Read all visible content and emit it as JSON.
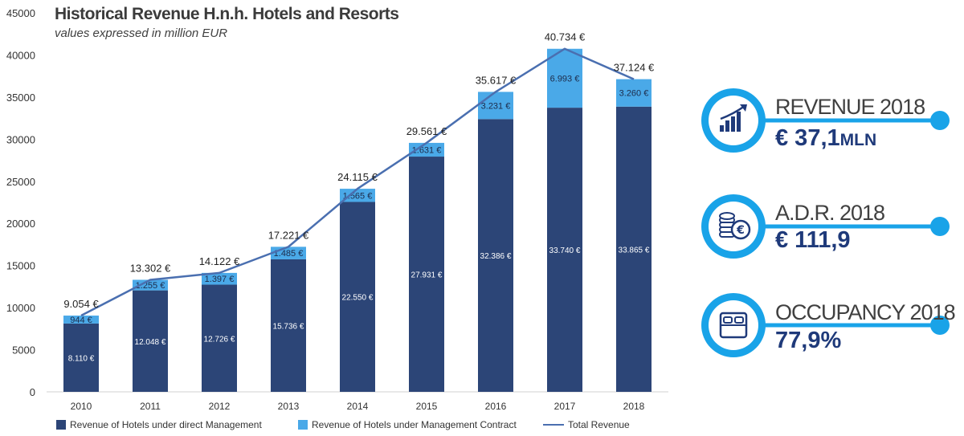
{
  "title": "Historical Revenue H.n.h. Hotels and Resorts",
  "subtitle": "values expressed in million EUR",
  "colors": {
    "direct": "#2c4577",
    "contract": "#4aa9e8",
    "total_line": "#4a6fb0",
    "kpi_ring": "#19a3e8",
    "kpi_value": "#1f3a7a"
  },
  "chart_data": {
    "type": "bar",
    "stacked": true,
    "categories": [
      "2010",
      "2011",
      "2012",
      "2013",
      "2014",
      "2015",
      "2016",
      "2017",
      "2018"
    ],
    "series": [
      {
        "name": "Revenue of Hotels under direct Management",
        "values": [
          8110,
          12048,
          12726,
          15736,
          22550,
          27931,
          32386,
          33740,
          33865
        ],
        "labels": [
          "8.110 €",
          "12.048 €",
          "12.726 €",
          "15.736 €",
          "22.550 €",
          "27.931 €",
          "32.386 €",
          "33.740 €",
          "33.865 €"
        ]
      },
      {
        "name": "Revenue of Hotels under Management Contract",
        "values": [
          944,
          1255,
          1397,
          1485,
          1565,
          1631,
          3231,
          6993,
          3260
        ],
        "labels": [
          "944 €",
          "1.255 €",
          "1.397 €",
          "1.485 €",
          "1.565 €",
          "1.631 €",
          "3.231 €",
          "6.993 €",
          "3.260 €"
        ]
      },
      {
        "name": "Total Revenue",
        "type": "line",
        "values": [
          9054,
          13302,
          14122,
          17221,
          24115,
          29561,
          35617,
          40734,
          37124
        ],
        "labels": [
          "9.054 €",
          "13.302 €",
          "14.122 €",
          "17.221 €",
          "24.115 €",
          "29.561 €",
          "35.617 €",
          "40.734 €",
          "37.124 €"
        ]
      }
    ],
    "ylim": [
      0,
      45000
    ],
    "yticks": [
      "0",
      "5000",
      "10000",
      "15000",
      "20000",
      "25000",
      "30000",
      "35000",
      "40000",
      "45000"
    ],
    "grid": false,
    "legend": "bottom"
  },
  "kpis": [
    {
      "icon": "revenue-growth-icon",
      "label": "REVENUE 2018",
      "value": "€ 37,1",
      "unit": "MLN"
    },
    {
      "icon": "euro-coins-icon",
      "label": "A.D.R. 2018",
      "value": "€ 111,9",
      "unit": ""
    },
    {
      "icon": "bed-icon",
      "label": "OCCUPANCY 2018",
      "value": "77,9%",
      "unit": ""
    }
  ]
}
